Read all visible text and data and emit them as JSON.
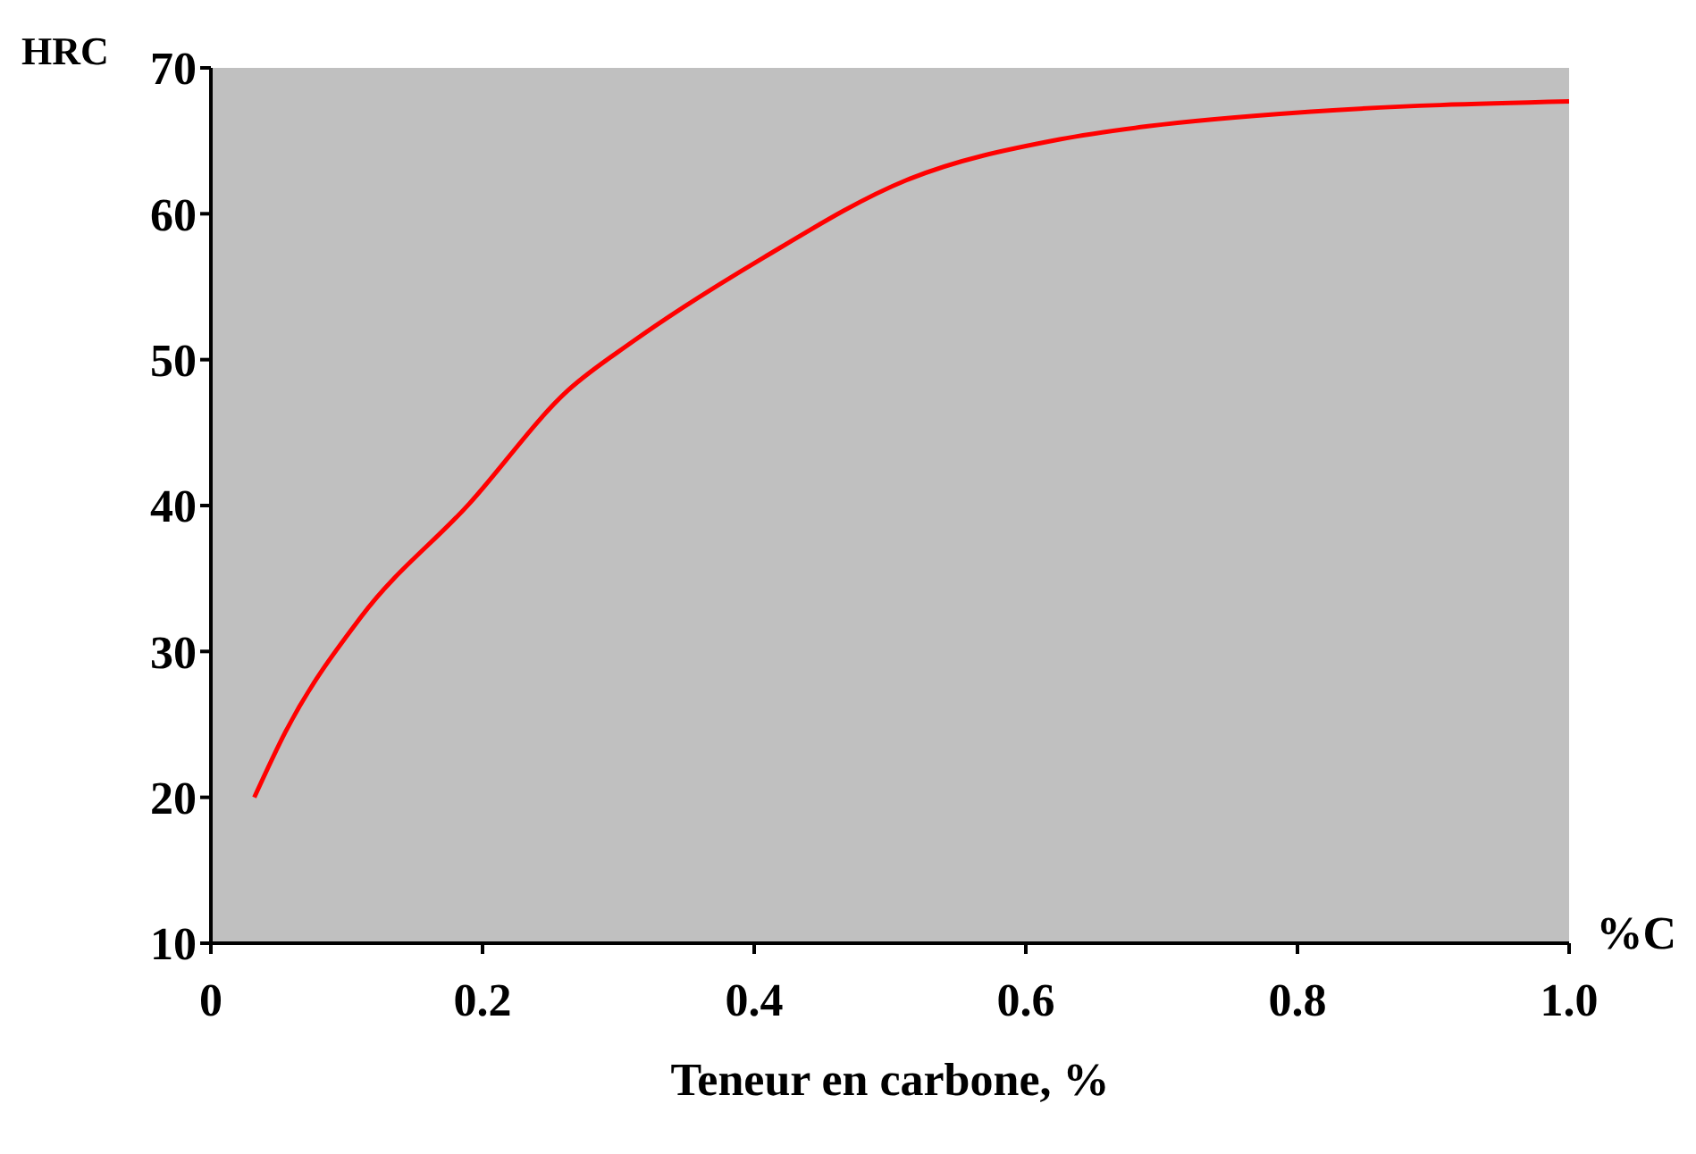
{
  "chart_data": {
    "type": "line",
    "xlabel": "Teneur en carbone, %",
    "ylabel": "HRC",
    "annotations": [
      "%C"
    ],
    "x": [
      0.032,
      0.055,
      0.11,
      0.19,
      0.263,
      0.31,
      0.407,
      0.512,
      0.625,
      0.69,
      0.81,
      1.0
    ],
    "series": [
      {
        "color": "#ff0000",
        "values": [
          20,
          24.5,
          32.3,
          40.1,
          47.9,
          51.2,
          57,
          62.3,
          65.1,
          66,
          67,
          67.7
        ]
      }
    ],
    "xlim": [
      0,
      1.0
    ],
    "xticks": [
      0,
      0.2,
      0.4,
      0.6,
      0.8,
      {
        "value": 1.0,
        "label": "1.0"
      }
    ],
    "ylim": [
      10,
      70
    ],
    "yticks": [
      10,
      20,
      30,
      40,
      50,
      60,
      70
    ],
    "grid": false,
    "marker": "none",
    "line_style": "solid"
  }
}
